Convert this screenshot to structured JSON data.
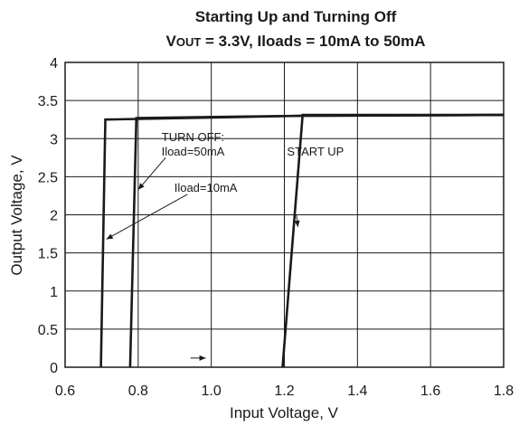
{
  "chart_data": {
    "type": "line",
    "title": "Starting Up and Turning Off",
    "subtitle_parts": {
      "v": "V",
      "out": "OUT",
      "rest": " = 3.3V, Iloads = 10mA to 50mA"
    },
    "xlabel": "Input Voltage, V",
    "ylabel": "Output Voltage, V",
    "xlim": [
      0.6,
      1.8
    ],
    "ylim": [
      0,
      4
    ],
    "xticks": [
      0.6,
      0.8,
      1.0,
      1.2,
      1.4,
      1.6,
      1.8
    ],
    "xtick_labels": [
      "0.6",
      "0.8",
      "1.0",
      "1.2",
      "1.4",
      "1.6",
      "1.8"
    ],
    "yticks": [
      0,
      0.5,
      1,
      1.5,
      2,
      2.5,
      3,
      3.5,
      4
    ],
    "ytick_labels": [
      "0",
      "0.5",
      "1",
      "1.5",
      "2",
      "2.5",
      "3",
      "3.5",
      "4"
    ],
    "grid": true,
    "series": [
      {
        "x": [
          0.698,
          0.71,
          1.25,
          1.8
        ],
        "y": [
          0,
          3.25,
          3.3,
          3.31
        ]
      },
      {
        "x": [
          0.778,
          0.795,
          1.25,
          1.8
        ],
        "y": [
          0,
          3.27,
          3.3,
          3.31
        ]
      },
      {
        "x": [
          1.195,
          1.25,
          1.8
        ],
        "y": [
          0,
          3.31,
          3.31
        ]
      }
    ],
    "annotations": [
      {
        "text": "TURN OFF:",
        "x": 0.95,
        "y": 2.97
      },
      {
        "text": "Iload=50mA",
        "x": 0.95,
        "y": 2.78
      },
      {
        "text": "Iload=10mA",
        "x": 0.985,
        "y": 2.3
      },
      {
        "text": "START UP",
        "x": 1.285,
        "y": 2.78
      }
    ]
  }
}
